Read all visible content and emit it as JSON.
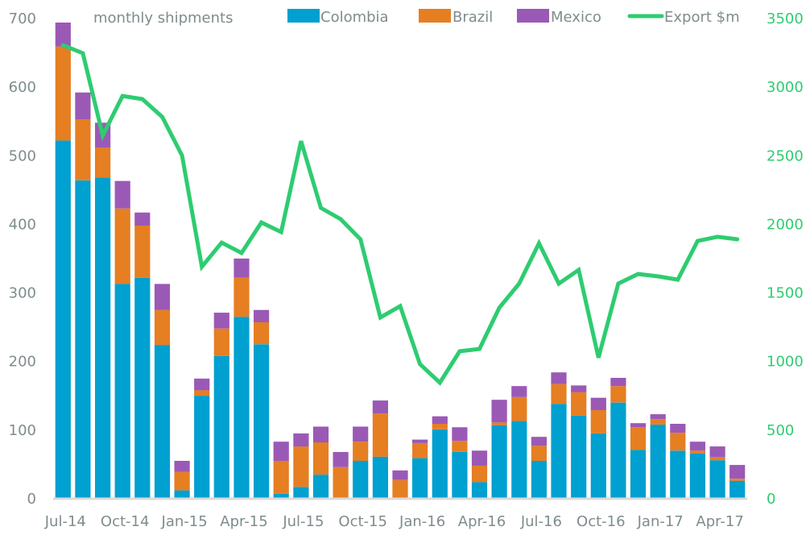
{
  "chart_data": {
    "type": "bar",
    "title": "monthly shipments",
    "xlabel": "",
    "ylabel": "",
    "y2label": "",
    "ylim": [
      0,
      700
    ],
    "y2lim": [
      0,
      3500
    ],
    "yticks": [
      "0",
      "100",
      "200",
      "300",
      "400",
      "500",
      "600",
      "700"
    ],
    "y2ticks": [
      "0",
      "500",
      "1000",
      "1500",
      "2000",
      "2500",
      "3000",
      "3500"
    ],
    "grid": false,
    "legend_position": "top",
    "stacked": true,
    "categories": [
      "Jul-14",
      "Aug-14",
      "Sep-14",
      "Oct-14",
      "Nov-14",
      "Dec-14",
      "Jan-15",
      "Feb-15",
      "Mar-15",
      "Apr-15",
      "May-15",
      "Jun-15",
      "Jul-15",
      "Aug-15",
      "Sep-15",
      "Oct-15",
      "Nov-15",
      "Dec-15",
      "Jan-16",
      "Feb-16",
      "Mar-16",
      "Apr-16",
      "May-16",
      "Jun-16",
      "Jul-16",
      "Aug-16",
      "Sep-16",
      "Oct-16",
      "Nov-16",
      "Dec-16",
      "Jan-17",
      "Feb-17",
      "Mar-17",
      "Apr-17",
      "May-17"
    ],
    "xtick_labels": [
      {
        "index": 0,
        "label": "Jul-14"
      },
      {
        "index": 3,
        "label": "Oct-14"
      },
      {
        "index": 6,
        "label": "Jan-15"
      },
      {
        "index": 9,
        "label": "Apr-15"
      },
      {
        "index": 12,
        "label": "Jul-15"
      },
      {
        "index": 15,
        "label": "Oct-15"
      },
      {
        "index": 18,
        "label": "Jan-16"
      },
      {
        "index": 21,
        "label": "Apr-16"
      },
      {
        "index": 24,
        "label": "Jul-16"
      },
      {
        "index": 27,
        "label": "Oct-16"
      },
      {
        "index": 30,
        "label": "Jan-17"
      },
      {
        "index": 33,
        "label": "Apr-17"
      }
    ],
    "series": [
      {
        "name": "Colombia",
        "type": "bar",
        "axis": "left",
        "color": "#00a0d0",
        "values": [
          521,
          463,
          467,
          312,
          321,
          223,
          11,
          149,
          207,
          264,
          224,
          6,
          16,
          34,
          0,
          54,
          60,
          0,
          58,
          100,
          67,
          23,
          106,
          112,
          54,
          137,
          120,
          94,
          139,
          70,
          107,
          69,
          65,
          55,
          25
        ]
      },
      {
        "name": "Brazil",
        "type": "bar",
        "axis": "left",
        "color": "#e67e22",
        "values": [
          137,
          89,
          44,
          110,
          76,
          51,
          27,
          8,
          40,
          57,
          32,
          48,
          59,
          47,
          45,
          28,
          63,
          26,
          22,
          8,
          16,
          24,
          4,
          35,
          22,
          29,
          34,
          34,
          24,
          33,
          8,
          26,
          4,
          4,
          3
        ]
      },
      {
        "name": "Mexico",
        "type": "bar",
        "axis": "left",
        "color": "#9b59b6",
        "values": [
          35,
          39,
          36,
          40,
          19,
          38,
          16,
          17,
          23,
          28,
          18,
          28,
          19,
          23,
          22,
          22,
          19,
          14,
          5,
          11,
          20,
          22,
          33,
          16,
          13,
          17,
          10,
          18,
          12,
          6,
          7,
          13,
          13,
          16,
          20
        ]
      },
      {
        "name": "Export $m",
        "type": "line",
        "axis": "right",
        "color": "#2ecc71",
        "values": [
          3300,
          3241,
          2642,
          2930,
          2907,
          2777,
          2496,
          1685,
          1861,
          1785,
          2008,
          1938,
          2601,
          2114,
          2032,
          1885,
          1315,
          1398,
          975,
          840,
          1069,
          1086,
          1386,
          1562,
          1856,
          1562,
          1662,
          1022,
          1562,
          1632,
          1615,
          1591,
          1873,
          1903,
          1885
        ]
      }
    ],
    "legend": [
      "Colombia",
      "Brazil",
      "Mexico",
      "Export $m"
    ]
  },
  "colors": {
    "axis_text": "#7f8c8d",
    "right_axis_text": "#2ecc71",
    "baseline": "#d9d9d9"
  }
}
